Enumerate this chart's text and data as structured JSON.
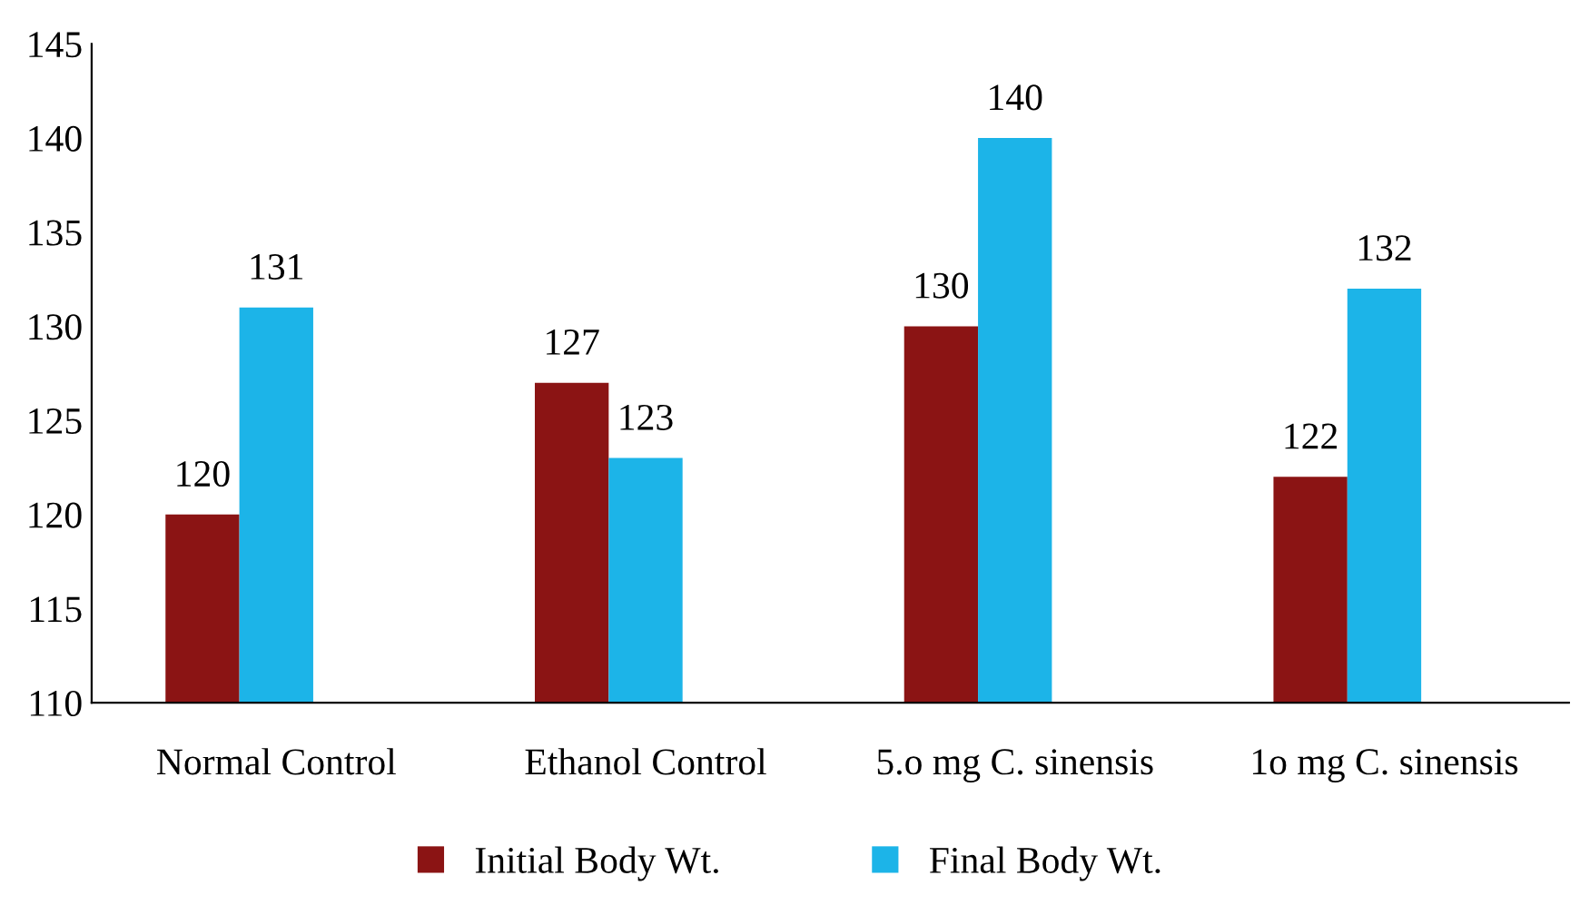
{
  "chart_data": {
    "type": "bar",
    "categories": [
      "Normal Control",
      "Ethanol Control",
      "5.o mg C. sinensis",
      "1o mg C. sinensis"
    ],
    "series": [
      {
        "name": "Initial Body Wt.",
        "color": "#8b1414",
        "values": [
          120,
          127,
          130,
          122
        ]
      },
      {
        "name": "Final Body Wt.",
        "color": "#1cb4e8",
        "values": [
          131,
          123,
          140,
          132
        ]
      }
    ],
    "ylim": [
      110,
      145
    ],
    "yticks": [
      110,
      115,
      120,
      125,
      130,
      135,
      140,
      145
    ],
    "grid": false,
    "legend": "bottom",
    "data_labels": true
  }
}
